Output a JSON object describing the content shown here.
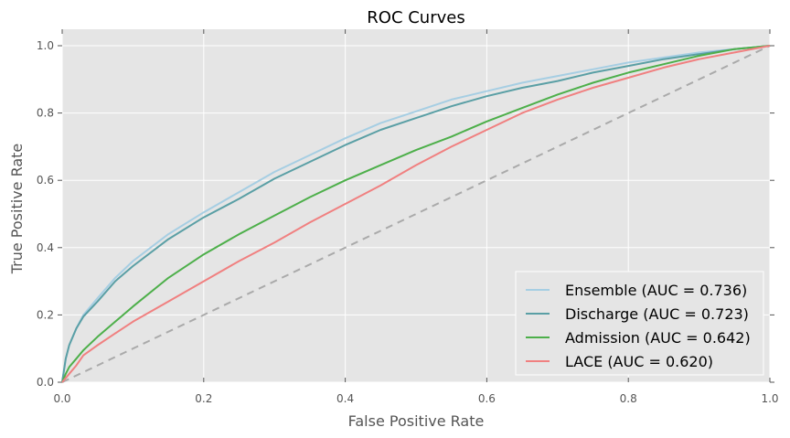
{
  "chart_data": {
    "type": "line",
    "title": "ROC Curves",
    "xlabel": "False Positive Rate",
    "ylabel": "True Positive Rate",
    "xlim": [
      0.0,
      1.0
    ],
    "ylim": [
      0.0,
      1.05
    ],
    "grid": true,
    "legend_position": "lower-right",
    "xticks": [
      "0.0",
      "0.2",
      "0.4",
      "0.6",
      "0.8",
      "1.0"
    ],
    "yticks": [
      "0.0",
      "0.2",
      "0.4",
      "0.6",
      "0.8",
      "1.0"
    ],
    "series": [
      {
        "name": "Ensemble (AUC = 0.736)",
        "color": "#a6cee3",
        "x": [
          0,
          0.005,
          0.01,
          0.02,
          0.03,
          0.05,
          0.075,
          0.1,
          0.15,
          0.2,
          0.25,
          0.3,
          0.35,
          0.4,
          0.45,
          0.5,
          0.55,
          0.6,
          0.65,
          0.7,
          0.75,
          0.8,
          0.85,
          0.9,
          0.95,
          1.0
        ],
        "y": [
          0,
          0.07,
          0.11,
          0.16,
          0.2,
          0.25,
          0.31,
          0.36,
          0.44,
          0.505,
          0.565,
          0.625,
          0.675,
          0.725,
          0.77,
          0.805,
          0.84,
          0.865,
          0.89,
          0.91,
          0.93,
          0.95,
          0.965,
          0.98,
          0.99,
          1.0
        ]
      },
      {
        "name": "Discharge (AUC = 0.723)",
        "color": "#5a9fa5",
        "x": [
          0,
          0.005,
          0.01,
          0.02,
          0.03,
          0.05,
          0.075,
          0.1,
          0.15,
          0.2,
          0.25,
          0.3,
          0.35,
          0.4,
          0.45,
          0.5,
          0.55,
          0.6,
          0.65,
          0.7,
          0.75,
          0.8,
          0.85,
          0.9,
          0.95,
          1.0
        ],
        "y": [
          0,
          0.07,
          0.11,
          0.16,
          0.195,
          0.24,
          0.3,
          0.345,
          0.425,
          0.49,
          0.545,
          0.605,
          0.655,
          0.705,
          0.75,
          0.785,
          0.82,
          0.85,
          0.875,
          0.895,
          0.92,
          0.94,
          0.96,
          0.975,
          0.99,
          1.0
        ]
      },
      {
        "name": "Admission (AUC = 0.642)",
        "color": "#4daf4a",
        "x": [
          0,
          0.005,
          0.01,
          0.02,
          0.03,
          0.05,
          0.075,
          0.1,
          0.15,
          0.2,
          0.25,
          0.3,
          0.35,
          0.4,
          0.45,
          0.5,
          0.55,
          0.6,
          0.65,
          0.7,
          0.75,
          0.8,
          0.85,
          0.9,
          0.95,
          1.0
        ],
        "y": [
          0,
          0.025,
          0.045,
          0.07,
          0.095,
          0.135,
          0.18,
          0.225,
          0.31,
          0.38,
          0.44,
          0.495,
          0.55,
          0.6,
          0.645,
          0.69,
          0.73,
          0.775,
          0.815,
          0.855,
          0.89,
          0.92,
          0.945,
          0.97,
          0.99,
          1.0
        ]
      },
      {
        "name": "LACE (AUC = 0.620)",
        "color": "#f08080",
        "x": [
          0,
          0.01,
          0.02,
          0.03,
          0.05,
          0.075,
          0.1,
          0.15,
          0.2,
          0.25,
          0.3,
          0.35,
          0.4,
          0.45,
          0.5,
          0.55,
          0.6,
          0.65,
          0.7,
          0.75,
          0.8,
          0.85,
          0.9,
          0.95,
          1.0
        ],
        "y": [
          0,
          0.025,
          0.05,
          0.08,
          0.11,
          0.145,
          0.18,
          0.24,
          0.3,
          0.36,
          0.415,
          0.475,
          0.53,
          0.585,
          0.645,
          0.7,
          0.75,
          0.8,
          0.84,
          0.875,
          0.905,
          0.935,
          0.96,
          0.98,
          1.0
        ]
      }
    ],
    "reference_line": {
      "name": "chance",
      "x": [
        0,
        1
      ],
      "y": [
        0,
        1
      ],
      "color": "#aaaaaa",
      "style": "dashed"
    }
  }
}
